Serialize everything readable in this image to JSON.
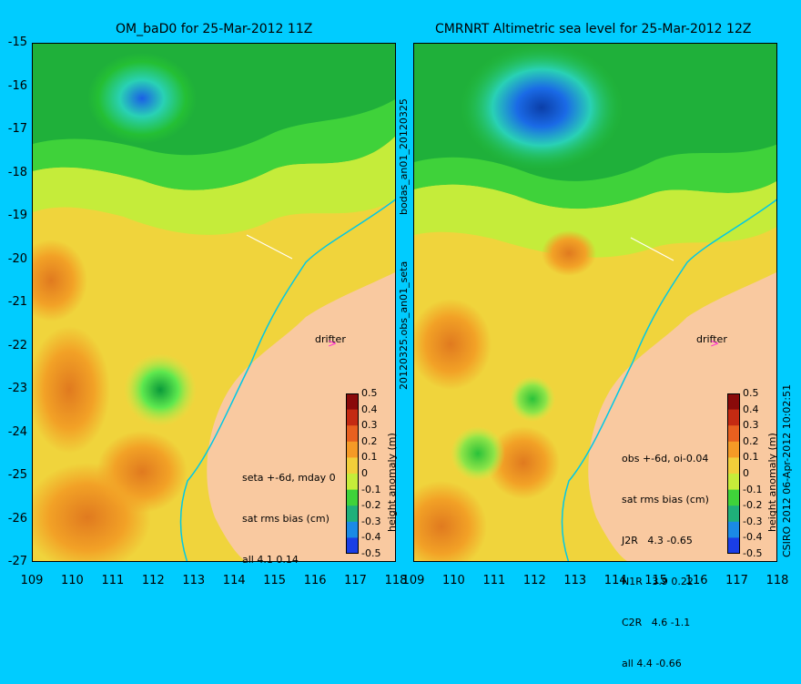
{
  "left_panel": {
    "title": "OM_baD0 for 25-Mar-2012 11Z",
    "stats_lines": [
      "seta +-6d, mday 0",
      "sat rms bias (cm)",
      "all 4.1 0.14"
    ],
    "drifter_label": "drifter"
  },
  "right_panel": {
    "title": "CMRNRT Altimetric sea level  for 25-Mar-2012 12Z",
    "stats_lines": [
      "obs +-6d, oi-0.04",
      "sat rms bias (cm)",
      "J2R   4.3 -0.65",
      "N1R   3.9 0.22",
      "C2R   4.6 -1.1",
      "all 4.4 -0.66"
    ],
    "drifter_label": "drifter"
  },
  "middle_label_top": "bodas_an01_20120325",
  "middle_label_bottom": "20120325.obs_an01_seta",
  "credit": "CSIRO 2012   06-Apr-2012 10:02:51",
  "colorbar": {
    "label": "height anomaly (m)",
    "ticks": [
      "0.5",
      "0.4",
      "0.3",
      "0.2",
      "0.1",
      "0",
      "-0.1",
      "-0.2",
      "-0.3",
      "-0.4",
      "-0.5"
    ]
  },
  "axes": {
    "y_ticks": [
      "-15",
      "-16",
      "-17",
      "-18",
      "-19",
      "-20",
      "-21",
      "-22",
      "-23",
      "-24",
      "-25",
      "-26",
      "-27"
    ],
    "x_ticks_left": [
      "109",
      "110",
      "111",
      "112",
      "113",
      "114",
      "115",
      "116",
      "117",
      "118"
    ],
    "x_ticks_right": [
      "109",
      "110",
      "111",
      "112",
      "113",
      "114",
      "115",
      "116",
      "117",
      "118"
    ]
  },
  "colors": {
    "background": "#00ccff",
    "land": "#f9c9a0",
    "coastline": "#00c8e6"
  }
}
